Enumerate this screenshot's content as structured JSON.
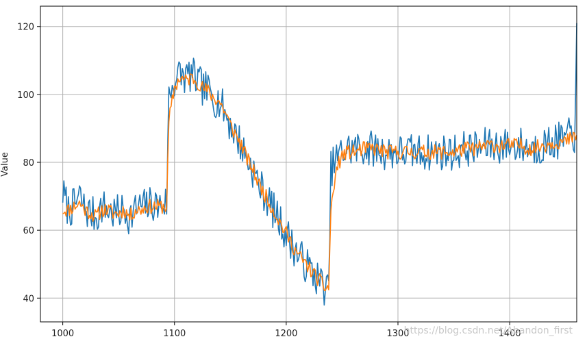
{
  "chart_data": {
    "type": "line",
    "title": "",
    "xlabel": "",
    "ylabel": "Value",
    "xlim": [
      980,
      1460
    ],
    "ylim": [
      33,
      126
    ],
    "xticks": [
      1000,
      1100,
      1200,
      1300,
      1400
    ],
    "yticks": [
      40,
      60,
      80,
      100,
      120
    ],
    "grid": true,
    "legend": "none",
    "series": [
      {
        "color": "#1f77b4",
        "anchors": [
          [
            1000,
            71
          ],
          [
            1005,
            66
          ],
          [
            1010,
            67
          ],
          [
            1015,
            70
          ],
          [
            1020,
            66
          ],
          [
            1025,
            65
          ],
          [
            1030,
            64
          ],
          [
            1035,
            67
          ],
          [
            1040,
            66
          ],
          [
            1045,
            65
          ],
          [
            1050,
            65
          ],
          [
            1055,
            66
          ],
          [
            1060,
            64
          ],
          [
            1065,
            66
          ],
          [
            1070,
            67
          ],
          [
            1075,
            67
          ],
          [
            1080,
            68
          ],
          [
            1085,
            67
          ],
          [
            1090,
            68
          ],
          [
            1093,
            68
          ],
          [
            1095,
            100
          ],
          [
            1100,
            104
          ],
          [
            1105,
            106
          ],
          [
            1110,
            105
          ],
          [
            1115,
            106
          ],
          [
            1120,
            104
          ],
          [
            1125,
            102
          ],
          [
            1130,
            101
          ],
          [
            1135,
            99
          ],
          [
            1140,
            98
          ],
          [
            1145,
            95
          ],
          [
            1150,
            91
          ],
          [
            1155,
            88
          ],
          [
            1160,
            85
          ],
          [
            1165,
            81
          ],
          [
            1170,
            78
          ],
          [
            1175,
            74
          ],
          [
            1180,
            71
          ],
          [
            1185,
            68
          ],
          [
            1190,
            65
          ],
          [
            1195,
            62
          ],
          [
            1200,
            59
          ],
          [
            1205,
            56
          ],
          [
            1210,
            53
          ],
          [
            1215,
            51
          ],
          [
            1220,
            49
          ],
          [
            1225,
            47
          ],
          [
            1230,
            45
          ],
          [
            1235,
            43
          ],
          [
            1238,
            42
          ],
          [
            1240,
            78
          ],
          [
            1245,
            81
          ],
          [
            1250,
            83
          ],
          [
            1255,
            84
          ],
          [
            1260,
            84
          ],
          [
            1270,
            84
          ],
          [
            1280,
            84
          ],
          [
            1290,
            83
          ],
          [
            1300,
            83
          ],
          [
            1310,
            83
          ],
          [
            1320,
            83
          ],
          [
            1330,
            83
          ],
          [
            1340,
            83
          ],
          [
            1350,
            83
          ],
          [
            1360,
            84
          ],
          [
            1370,
            84
          ],
          [
            1380,
            85
          ],
          [
            1390,
            85
          ],
          [
            1400,
            85
          ],
          [
            1410,
            85
          ],
          [
            1420,
            84
          ],
          [
            1430,
            85
          ],
          [
            1440,
            86
          ],
          [
            1450,
            87
          ],
          [
            1455,
            88
          ],
          [
            1458,
            88
          ],
          [
            1460,
            121
          ]
        ],
        "noise": 5.5,
        "seed": 7
      },
      {
        "color": "#ff7f0e",
        "anchors": [
          [
            1000,
            66
          ],
          [
            1005,
            66
          ],
          [
            1010,
            67
          ],
          [
            1015,
            68
          ],
          [
            1020,
            66
          ],
          [
            1025,
            65
          ],
          [
            1030,
            64
          ],
          [
            1035,
            66
          ],
          [
            1040,
            66
          ],
          [
            1045,
            65
          ],
          [
            1050,
            65
          ],
          [
            1055,
            66
          ],
          [
            1060,
            64
          ],
          [
            1065,
            66
          ],
          [
            1070,
            66
          ],
          [
            1075,
            67
          ],
          [
            1080,
            67
          ],
          [
            1085,
            67
          ],
          [
            1090,
            67
          ],
          [
            1093,
            67
          ],
          [
            1095,
            92
          ],
          [
            1100,
            102
          ],
          [
            1105,
            105
          ],
          [
            1110,
            104
          ],
          [
            1115,
            105
          ],
          [
            1120,
            104
          ],
          [
            1125,
            102
          ],
          [
            1130,
            101
          ],
          [
            1135,
            99
          ],
          [
            1140,
            98
          ],
          [
            1145,
            95
          ],
          [
            1150,
            91
          ],
          [
            1155,
            88
          ],
          [
            1160,
            85
          ],
          [
            1165,
            81
          ],
          [
            1170,
            78
          ],
          [
            1175,
            74
          ],
          [
            1180,
            71
          ],
          [
            1185,
            68
          ],
          [
            1190,
            65
          ],
          [
            1195,
            62
          ],
          [
            1200,
            59
          ],
          [
            1205,
            56
          ],
          [
            1210,
            53
          ],
          [
            1215,
            51
          ],
          [
            1220,
            49
          ],
          [
            1225,
            47
          ],
          [
            1230,
            45
          ],
          [
            1235,
            43
          ],
          [
            1238,
            43
          ],
          [
            1240,
            66
          ],
          [
            1245,
            78
          ],
          [
            1250,
            82
          ],
          [
            1255,
            83
          ],
          [
            1260,
            83
          ],
          [
            1270,
            84
          ],
          [
            1280,
            84
          ],
          [
            1290,
            83
          ],
          [
            1300,
            83
          ],
          [
            1310,
            83
          ],
          [
            1320,
            83
          ],
          [
            1330,
            83
          ],
          [
            1340,
            83
          ],
          [
            1350,
            83
          ],
          [
            1360,
            84
          ],
          [
            1370,
            84
          ],
          [
            1380,
            85
          ],
          [
            1390,
            85
          ],
          [
            1400,
            85
          ],
          [
            1410,
            85
          ],
          [
            1420,
            84
          ],
          [
            1430,
            85
          ],
          [
            1440,
            86
          ],
          [
            1450,
            86
          ],
          [
            1455,
            87
          ],
          [
            1458,
            87
          ],
          [
            1460,
            88
          ]
        ],
        "noise": 2.2,
        "seed": 11
      }
    ]
  },
  "watermark": "https://blog.csdn.net/Abandon_first"
}
